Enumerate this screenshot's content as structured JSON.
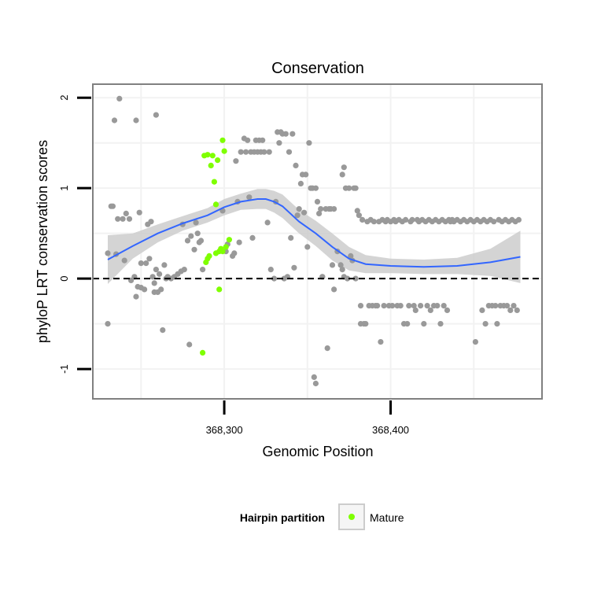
{
  "chart_data": {
    "type": "scatter",
    "title": "Conservation",
    "xlabel": "Genomic Position",
    "ylabel": "phyloP LRT conservation scores",
    "xlim": [
      368221,
      368491
    ],
    "ylim": [
      -1.33,
      2.15
    ],
    "x_ticks": [
      368300,
      368400
    ],
    "x_tick_labels": [
      "368,300",
      "368,400"
    ],
    "y_ticks": [
      -1,
      0,
      1,
      2
    ],
    "y_tick_labels": [
      "-1",
      "0",
      "1",
      "2"
    ],
    "reference_line_y": 0,
    "grid": true,
    "colors": {
      "other": "#999999",
      "mature": "#7FFF00",
      "smooth": "#3366FF",
      "band": "#cccccc",
      "panel_border": "#808080",
      "grid": "#f2f2f2"
    },
    "legend": {
      "title": "Hairpin partition",
      "position": "bottom",
      "entries": [
        {
          "label": "Mature",
          "color": "#7FFF00"
        }
      ]
    },
    "series": [
      {
        "group": "other",
        "points": [
          [
            368230,
            0.28
          ],
          [
            368230,
            -0.5
          ],
          [
            368232,
            0.8
          ],
          [
            368233,
            0.8
          ],
          [
            368234,
            1.75
          ],
          [
            368235,
            0.27
          ],
          [
            368236,
            0.66
          ],
          [
            368237,
            1.99
          ],
          [
            368239,
            0.66
          ],
          [
            368240,
            0.2
          ],
          [
            368241,
            0.72
          ],
          [
            368243,
            0.66
          ],
          [
            368244,
            -0.02
          ],
          [
            368246,
            0.02
          ],
          [
            368247,
            -0.2
          ],
          [
            368247,
            1.75
          ],
          [
            368248,
            -0.09
          ],
          [
            368249,
            0.73
          ],
          [
            368250,
            0.17
          ],
          [
            368250,
            -0.1
          ],
          [
            368252,
            -0.12
          ],
          [
            368253,
            0.17
          ],
          [
            368254,
            0.6
          ],
          [
            368255,
            0.22
          ],
          [
            368256,
            0.63
          ],
          [
            368257,
            0.02
          ],
          [
            368258,
            -0.05
          ],
          [
            368258,
            -0.15
          ],
          [
            368259,
            1.81
          ],
          [
            368259,
            0.1
          ],
          [
            368260,
            -0.15
          ],
          [
            368261,
            0.05
          ],
          [
            368262,
            -0.12
          ],
          [
            368263,
            -0.57
          ],
          [
            368264,
            0.15
          ],
          [
            368265,
            0.0
          ],
          [
            368266,
            0.02
          ],
          [
            368268,
            0.0
          ],
          [
            368270,
            0.02
          ],
          [
            368272,
            0.05
          ],
          [
            368274,
            0.08
          ],
          [
            368275,
            0.6
          ],
          [
            368276,
            0.1
          ],
          [
            368278,
            0.42
          ],
          [
            368279,
            -0.73
          ],
          [
            368280,
            0.47
          ],
          [
            368282,
            0.32
          ],
          [
            368283,
            0.62
          ],
          [
            368284,
            0.5
          ],
          [
            368285,
            0.4
          ],
          [
            368286,
            0.42
          ],
          [
            368287,
            0.1
          ],
          [
            368299,
            0.75
          ],
          [
            368301,
            0.3
          ],
          [
            368302,
            0.38
          ],
          [
            368305,
            0.25
          ],
          [
            368306,
            0.28
          ],
          [
            368307,
            1.3
          ],
          [
            368308,
            0.85
          ],
          [
            368309,
            0.4
          ],
          [
            368310,
            1.4
          ],
          [
            368312,
            1.55
          ],
          [
            368313,
            1.4
          ],
          [
            368314,
            1.53
          ],
          [
            368315,
            0.9
          ],
          [
            368316,
            1.4
          ],
          [
            368317,
            0.45
          ],
          [
            368318,
            1.4
          ],
          [
            368319,
            1.53
          ],
          [
            368320,
            1.4
          ],
          [
            368321,
            1.53
          ],
          [
            368322,
            1.4
          ],
          [
            368323,
            1.53
          ],
          [
            368324,
            1.4
          ],
          [
            368326,
            0.62
          ],
          [
            368327,
            1.4
          ],
          [
            368328,
            0.1
          ],
          [
            368330,
            0.0
          ],
          [
            368331,
            0.85
          ],
          [
            368332,
            1.62
          ],
          [
            368333,
            1.5
          ],
          [
            368334,
            1.62
          ],
          [
            368335,
            1.6
          ],
          [
            368336,
            0.0
          ],
          [
            368337,
            1.6
          ],
          [
            368338,
            0.02
          ],
          [
            368339,
            1.4
          ],
          [
            368340,
            0.45
          ],
          [
            368341,
            1.6
          ],
          [
            368342,
            0.12
          ],
          [
            368343,
            1.25
          ],
          [
            368344,
            0.7
          ],
          [
            368345,
            0.77
          ],
          [
            368346,
            1.05
          ],
          [
            368347,
            1.15
          ],
          [
            368348,
            0.73
          ],
          [
            368349,
            1.15
          ],
          [
            368350,
            0.35
          ],
          [
            368351,
            1.5
          ],
          [
            368352,
            1.0
          ],
          [
            368353,
            1.0
          ],
          [
            368354,
            -1.09
          ],
          [
            368355,
            1.0
          ],
          [
            368355,
            -1.16
          ],
          [
            368356,
            0.85
          ],
          [
            368357,
            0.72
          ],
          [
            368358,
            0.77
          ],
          [
            368359,
            0.02
          ],
          [
            368359,
            0.02
          ],
          [
            368361,
            0.77
          ],
          [
            368362,
            -0.77
          ],
          [
            368363,
            0.77
          ],
          [
            368364,
            0.77
          ],
          [
            368365,
            0.15
          ],
          [
            368366,
            0.77
          ],
          [
            368366,
            -0.12
          ],
          [
            368368,
            0.3
          ],
          [
            368370,
            0.15
          ],
          [
            368371,
            1.15
          ],
          [
            368371,
            0.1
          ],
          [
            368372,
            1.23
          ],
          [
            368372,
            0.02
          ],
          [
            368373,
            1.0
          ],
          [
            368374,
            0.0
          ],
          [
            368375,
            1.0
          ],
          [
            368376,
            0.25
          ],
          [
            368377,
            0.2
          ],
          [
            368378,
            1.0
          ],
          [
            368379,
            1.0
          ],
          [
            368379,
            0.0
          ],
          [
            368380,
            0.75
          ],
          [
            368381,
            0.7
          ],
          [
            368382,
            -0.5
          ],
          [
            368382,
            -0.3
          ],
          [
            368383,
            0.65
          ],
          [
            368384,
            -0.5
          ],
          [
            368385,
            -0.5
          ],
          [
            368386,
            0.63
          ],
          [
            368387,
            -0.3
          ],
          [
            368388,
            0.65
          ],
          [
            368389,
            -0.3
          ],
          [
            368390,
            0.63
          ],
          [
            368391,
            -0.3
          ],
          [
            368392,
            -0.3
          ],
          [
            368393,
            0.63
          ],
          [
            368394,
            -0.7
          ],
          [
            368395,
            0.65
          ],
          [
            368396,
            -0.3
          ],
          [
            368397,
            0.63
          ],
          [
            368398,
            0.65
          ],
          [
            368399,
            -0.3
          ],
          [
            368400,
            0.63
          ],
          [
            368401,
            -0.3
          ],
          [
            368402,
            0.65
          ],
          [
            368403,
            0.63
          ],
          [
            368404,
            -0.3
          ],
          [
            368405,
            0.65
          ],
          [
            368406,
            -0.3
          ],
          [
            368407,
            0.63
          ],
          [
            368408,
            -0.5
          ],
          [
            368409,
            0.65
          ],
          [
            368410,
            -0.5
          ],
          [
            368411,
            -0.3
          ],
          [
            368412,
            0.63
          ],
          [
            368413,
            0.65
          ],
          [
            368414,
            -0.3
          ],
          [
            368415,
            -0.35
          ],
          [
            368416,
            0.65
          ],
          [
            368417,
            0.63
          ],
          [
            368418,
            -0.3
          ],
          [
            368419,
            0.65
          ],
          [
            368420,
            -0.5
          ],
          [
            368421,
            0.63
          ],
          [
            368422,
            -0.3
          ],
          [
            368423,
            0.65
          ],
          [
            368424,
            -0.35
          ],
          [
            368425,
            0.63
          ],
          [
            368426,
            -0.3
          ],
          [
            368427,
            0.65
          ],
          [
            368428,
            -0.3
          ],
          [
            368429,
            0.63
          ],
          [
            368430,
            -0.5
          ],
          [
            368431,
            0.65
          ],
          [
            368432,
            -0.3
          ],
          [
            368433,
            0.63
          ],
          [
            368434,
            -0.35
          ],
          [
            368435,
            0.65
          ],
          [
            368436,
            0.63
          ],
          [
            368437,
            0.65
          ],
          [
            368438,
            0.63
          ],
          [
            368440,
            0.65
          ],
          [
            368442,
            0.63
          ],
          [
            368444,
            0.65
          ],
          [
            368446,
            0.63
          ],
          [
            368448,
            0.65
          ],
          [
            368450,
            0.63
          ],
          [
            368451,
            -0.7
          ],
          [
            368452,
            0.65
          ],
          [
            368454,
            0.63
          ],
          [
            368455,
            -0.35
          ],
          [
            368456,
            0.65
          ],
          [
            368457,
            -0.5
          ],
          [
            368458,
            0.63
          ],
          [
            368459,
            -0.3
          ],
          [
            368460,
            0.65
          ],
          [
            368461,
            -0.3
          ],
          [
            368462,
            0.63
          ],
          [
            368463,
            -0.3
          ],
          [
            368464,
            -0.5
          ],
          [
            368465,
            0.65
          ],
          [
            368466,
            -0.3
          ],
          [
            368467,
            0.63
          ],
          [
            368468,
            -0.3
          ],
          [
            368469,
            0.65
          ],
          [
            368470,
            -0.3
          ],
          [
            368471,
            0.63
          ],
          [
            368472,
            -0.35
          ],
          [
            368473,
            0.65
          ],
          [
            368474,
            -0.3
          ],
          [
            368475,
            0.63
          ],
          [
            368476,
            -0.35
          ],
          [
            368477,
            0.65
          ]
        ]
      },
      {
        "group": "mature",
        "points": [
          [
            368287,
            -0.82
          ],
          [
            368288,
            1.36
          ],
          [
            368289,
            0.18
          ],
          [
            368290,
            1.37
          ],
          [
            368290,
            0.22
          ],
          [
            368291,
            0.25
          ],
          [
            368292,
            1.25
          ],
          [
            368293,
            1.36
          ],
          [
            368294,
            1.07
          ],
          [
            368295,
            0.82
          ],
          [
            368295,
            0.28
          ],
          [
            368296,
            1.31
          ],
          [
            368297,
            0.3
          ],
          [
            368297,
            -0.12
          ],
          [
            368298,
            0.33
          ],
          [
            368299,
            1.53
          ],
          [
            368299,
            0.3
          ],
          [
            368300,
            1.41
          ],
          [
            368301,
            0.35
          ],
          [
            368303,
            0.43
          ]
        ]
      }
    ],
    "smooth": {
      "x": [
        368230,
        368245,
        368260,
        368275,
        368290,
        368300,
        368310,
        368320,
        368325,
        368330,
        368335,
        368345,
        368355,
        368365,
        368375,
        368385,
        368400,
        368420,
        368440,
        368460,
        368478
      ],
      "y": [
        0.21,
        0.36,
        0.5,
        0.61,
        0.7,
        0.79,
        0.85,
        0.88,
        0.88,
        0.85,
        0.8,
        0.63,
        0.5,
        0.35,
        0.22,
        0.16,
        0.14,
        0.13,
        0.14,
        0.18,
        0.24
      ],
      "lower": [
        -0.06,
        0.22,
        0.4,
        0.53,
        0.62,
        0.7,
        0.76,
        0.77,
        0.77,
        0.73,
        0.67,
        0.5,
        0.36,
        0.2,
        0.09,
        0.06,
        0.06,
        0.05,
        0.05,
        0.03,
        -0.05
      ],
      "upper": [
        0.48,
        0.5,
        0.6,
        0.69,
        0.78,
        0.88,
        0.94,
        0.99,
        0.99,
        0.97,
        0.93,
        0.76,
        0.64,
        0.5,
        0.35,
        0.26,
        0.22,
        0.21,
        0.23,
        0.33,
        0.53
      ]
    }
  }
}
